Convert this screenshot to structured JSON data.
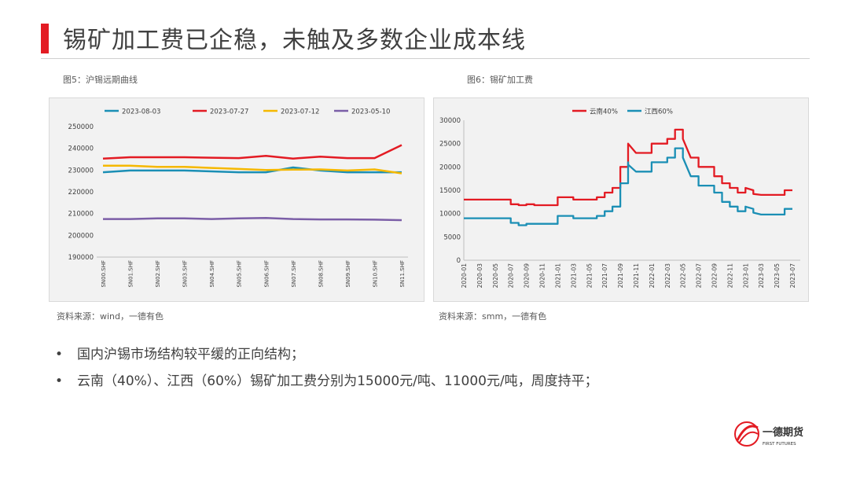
{
  "slide": {
    "title": "锡矿加工费已企稳，未触及多数企业成本线",
    "bullets": [
      "国内沪锡市场结构较平缓的正向结构；",
      "云南（40%）、江西（60%）锡矿加工费分别为15000元/吨、11000元/吨，周度持平；"
    ],
    "bullet_symbol": "•",
    "logo": {
      "name_cn": "一德期货",
      "name_en": "FIRST FUTURES"
    },
    "colors": {
      "accent": "#e31b23",
      "title": "#404040"
    }
  },
  "fig5": {
    "label": "图5：沪锡远期曲线",
    "source": "资料来源：wind，一德有色"
  },
  "fig6": {
    "label": "图6：锡矿加工费",
    "source": "资料来源：smm，一德有色"
  },
  "chart_data": [
    {
      "type": "line",
      "categories": [
        "SN00.SHF",
        "SN01.SHF",
        "SN02.SHF",
        "SN03.SHF",
        "SN04.SHF",
        "SN05.SHF",
        "SN06.SHF",
        "SN07.SHF",
        "SN08.SHF",
        "SN09.SHF",
        "SN10.SHF",
        "SN11.SHF"
      ],
      "ylim": [
        190000,
        250000
      ],
      "yticks": [
        190000,
        200000,
        210000,
        220000,
        230000,
        240000,
        250000
      ],
      "legend_position": "top",
      "grid": false,
      "series": [
        {
          "name": "2023-08-03",
          "color": "#1b8fb5",
          "values": [
            229000,
            229800,
            229800,
            229800,
            229400,
            229000,
            229000,
            231200,
            229800,
            229000,
            229000,
            229000
          ]
        },
        {
          "name": "2023-07-27",
          "color": "#e31b23",
          "values": [
            235300,
            235900,
            235900,
            235900,
            235700,
            235500,
            236500,
            235300,
            236200,
            235500,
            235500,
            241500
          ]
        },
        {
          "name": "2023-07-12",
          "color": "#f5b800",
          "values": [
            232000,
            232000,
            231500,
            231500,
            231000,
            230500,
            230000,
            230200,
            230300,
            229800,
            230300,
            228500
          ]
        },
        {
          "name": "2023-05-10",
          "color": "#7b5ea7",
          "values": [
            207500,
            207500,
            207800,
            207800,
            207500,
            207800,
            208000,
            207500,
            207300,
            207300,
            207200,
            207000
          ]
        }
      ]
    },
    {
      "type": "line",
      "xlim": [
        "2020-01",
        "2023-08"
      ],
      "xticks": [
        "2020-01",
        "2020-03",
        "2020-05",
        "2020-07",
        "2020-09",
        "2020-11",
        "2021-01",
        "2021-03",
        "2021-05",
        "2021-07",
        "2021-09",
        "2021-11",
        "2022-01",
        "2022-03",
        "2022-05",
        "2022-07",
        "2022-09",
        "2022-11",
        "2023-01",
        "2023-03",
        "2023-05",
        "2023-07"
      ],
      "ylim": [
        0,
        30000
      ],
      "yticks": [
        0,
        5000,
        10000,
        15000,
        20000,
        25000,
        30000
      ],
      "legend_position": "top",
      "grid": false,
      "step": true,
      "series": [
        {
          "name": "云南40%",
          "color": "#e31b23",
          "points": [
            [
              "2020-01",
              13000
            ],
            [
              "2020-07",
              13000
            ],
            [
              "2020-07",
              12000
            ],
            [
              "2020-08",
              12000
            ],
            [
              "2020-08",
              11800
            ],
            [
              "2020-09",
              11800
            ],
            [
              "2020-09",
              12000
            ],
            [
              "2020-10",
              12000
            ],
            [
              "2020-10",
              11800
            ],
            [
              "2021-01",
              11800
            ],
            [
              "2021-01",
              13500
            ],
            [
              "2021-03",
              13500
            ],
            [
              "2021-03",
              13000
            ],
            [
              "2021-06",
              13000
            ],
            [
              "2021-06",
              13500
            ],
            [
              "2021-07",
              13500
            ],
            [
              "2021-07",
              14500
            ],
            [
              "2021-08",
              14500
            ],
            [
              "2021-08",
              15500
            ],
            [
              "2021-09",
              15500
            ],
            [
              "2021-09",
              20000
            ],
            [
              "2021-10",
              20000
            ],
            [
              "2021-10",
              24500
            ],
            [
              "2021-10",
              22000
            ],
            [
              "2021-10",
              25000
            ],
            [
              "2021-11",
              23000
            ],
            [
              "2022-01",
              23000
            ],
            [
              "2022-01",
              25000
            ],
            [
              "2022-03",
              25000
            ],
            [
              "2022-03",
              26000
            ],
            [
              "2022-04",
              26000
            ],
            [
              "2022-04",
              28000
            ],
            [
              "2022-05",
              28000
            ],
            [
              "2022-05",
              26000
            ],
            [
              "2022-06",
              22000
            ],
            [
              "2022-07",
              22000
            ],
            [
              "2022-07",
              20000
            ],
            [
              "2022-09",
              20000
            ],
            [
              "2022-09",
              18000
            ],
            [
              "2022-10",
              18000
            ],
            [
              "2022-10",
              16500
            ],
            [
              "2022-11",
              16500
            ],
            [
              "2022-11",
              15500
            ],
            [
              "2022-12",
              15500
            ],
            [
              "2022-12",
              14500
            ],
            [
              "2023-01",
              14500
            ],
            [
              "2023-01",
              15500
            ],
            [
              "2023-02",
              15000
            ],
            [
              "2023-02",
              14200
            ],
            [
              "2023-03",
              14000
            ],
            [
              "2023-03",
              14000
            ],
            [
              "2023-06",
              14000
            ],
            [
              "2023-06",
              15000
            ],
            [
              "2023-07",
              15000
            ]
          ]
        },
        {
          "name": "江西60%",
          "color": "#1b8fb5",
          "points": [
            [
              "2020-01",
              9000
            ],
            [
              "2020-07",
              9000
            ],
            [
              "2020-07",
              8000
            ],
            [
              "2020-08",
              8000
            ],
            [
              "2020-08",
              7500
            ],
            [
              "2020-09",
              7500
            ],
            [
              "2020-09",
              7800
            ],
            [
              "2020-10",
              7800
            ],
            [
              "2021-01",
              7800
            ],
            [
              "2021-01",
              9500
            ],
            [
              "2021-03",
              9500
            ],
            [
              "2021-03",
              9000
            ],
            [
              "2021-06",
              9000
            ],
            [
              "2021-06",
              9500
            ],
            [
              "2021-07",
              9500
            ],
            [
              "2021-07",
              10500
            ],
            [
              "2021-08",
              10500
            ],
            [
              "2021-08",
              11500
            ],
            [
              "2021-09",
              11500
            ],
            [
              "2021-09",
              16500
            ],
            [
              "2021-10",
              16500
            ],
            [
              "2021-10",
              21000
            ],
            [
              "2021-10",
              18500
            ],
            [
              "2021-10",
              20500
            ],
            [
              "2021-11",
              19000
            ],
            [
              "2022-01",
              19000
            ],
            [
              "2022-01",
              21000
            ],
            [
              "2022-03",
              21000
            ],
            [
              "2022-03",
              22000
            ],
            [
              "2022-04",
              22000
            ],
            [
              "2022-04",
              24000
            ],
            [
              "2022-05",
              24000
            ],
            [
              "2022-05",
              22000
            ],
            [
              "2022-06",
              18000
            ],
            [
              "2022-07",
              18000
            ],
            [
              "2022-07",
              16000
            ],
            [
              "2022-09",
              16000
            ],
            [
              "2022-09",
              14500
            ],
            [
              "2022-10",
              14500
            ],
            [
              "2022-10",
              12500
            ],
            [
              "2022-11",
              12500
            ],
            [
              "2022-11",
              11500
            ],
            [
              "2022-12",
              11500
            ],
            [
              "2022-12",
              10500
            ],
            [
              "2023-01",
              10500
            ],
            [
              "2023-01",
              11500
            ],
            [
              "2023-02",
              11000
            ],
            [
              "2023-02",
              10200
            ],
            [
              "2023-03",
              9800
            ],
            [
              "2023-03",
              9800
            ],
            [
              "2023-06",
              9800
            ],
            [
              "2023-06",
              11000
            ],
            [
              "2023-07",
              11000
            ]
          ]
        }
      ]
    }
  ]
}
